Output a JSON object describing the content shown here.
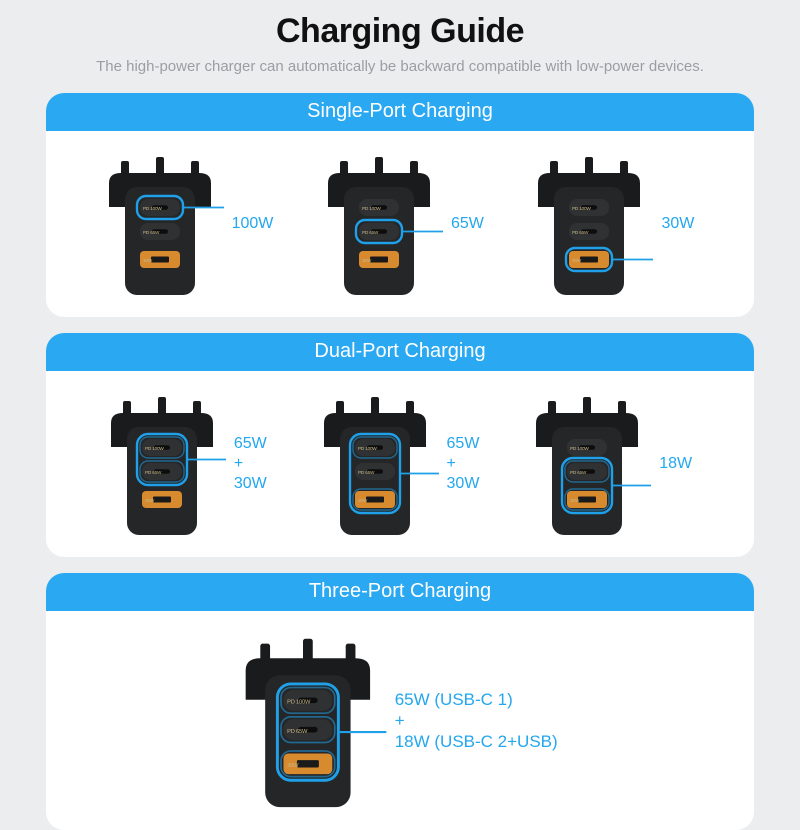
{
  "title": "Charging Guide",
  "subtitle": "The high-power charger can automatically be backward\ncompatible with low-power devices.",
  "colors": {
    "page_bg": "#ecedef",
    "card_bg": "#ffffff",
    "header_bg": "#2aa8f2",
    "header_text": "#ffffff",
    "title_text": "#111111",
    "subtitle_text": "#9a9ea3",
    "annotation_text": "#22a7f0",
    "charger_body": "#242628",
    "charger_dark": "#1a1b1d",
    "port_c_fill": "#2f3133",
    "port_a_fill": "#d88a2e",
    "port_label_text": "#c9b98a",
    "highlight_ring": "#1fa0e8",
    "leader_line": "#1fa0e8"
  },
  "charger": {
    "width": 110,
    "height": 135,
    "body_radius": 12,
    "ports": {
      "c1": {
        "label": "PD 100W",
        "kind": "usb-c"
      },
      "c2": {
        "label": "PD 65W",
        "kind": "usb-c"
      },
      "a": {
        "label": "30W",
        "kind": "usb-a"
      }
    }
  },
  "sections": [
    {
      "heading": "Single-Port Charging",
      "cells": [
        {
          "highlight": [
            "c1"
          ],
          "annotation": "100W"
        },
        {
          "highlight": [
            "c2"
          ],
          "annotation": "65W"
        },
        {
          "highlight": [
            "a"
          ],
          "annotation": "30W"
        }
      ]
    },
    {
      "heading": "Dual-Port Charging",
      "cells": [
        {
          "highlight": [
            "c1",
            "c2"
          ],
          "annotation": "65W\n+\n30W"
        },
        {
          "highlight": [
            "c1",
            "a"
          ],
          "annotation": "65W\n+\n30W"
        },
        {
          "highlight": [
            "c2",
            "a"
          ],
          "annotation": "18W"
        }
      ]
    },
    {
      "heading": "Three-Port Charging",
      "cells": [
        {
          "highlight": [
            "c1",
            "c2",
            "a"
          ],
          "annotation": "65W (USB-C 1)\n+\n18W (USB-C 2+USB)",
          "big": true
        }
      ]
    }
  ]
}
